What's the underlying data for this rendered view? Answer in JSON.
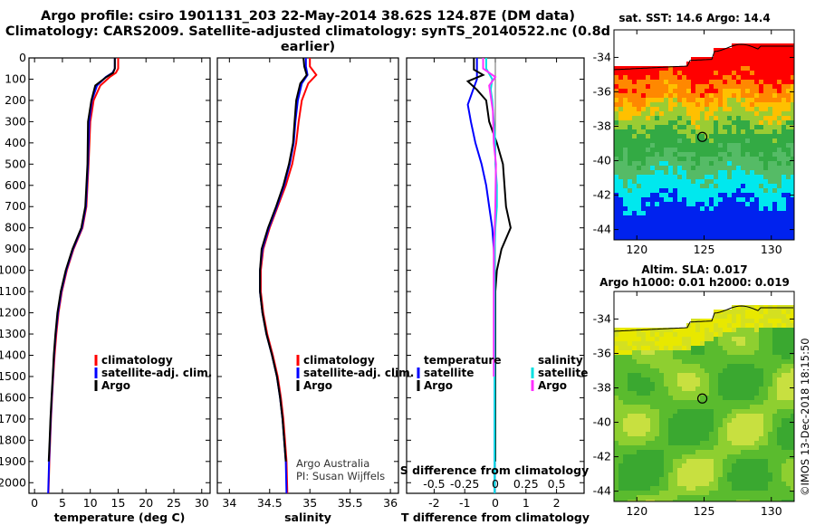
{
  "title": {
    "line1": "Argo profile: csiro 1901131_203 22-May-2014 38.62S 124.87E (DM data)",
    "line2": "Climatology: CARS2009. Satellite-adjusted climatology: synTS_20140522.nc (0.8d earlier)"
  },
  "colors": {
    "climatology": "#ff0000",
    "satellite": "#0000ff",
    "argo": "#000000",
    "salinity_satellite": "#00e0e0",
    "salinity_argo": "#ff30ff"
  },
  "credit": {
    "line1": "Argo Australia",
    "line2": "PI: Susan Wijffels"
  },
  "watermark": "©IMOS 13-Dec-2018 18:15:50",
  "chart_data": [
    {
      "type": "line",
      "panel": "temperature",
      "xlabel": "temperature (deg C)",
      "ylabel": "",
      "xlim": [
        -1,
        31.5
      ],
      "ylim": [
        2050,
        0
      ],
      "xticks": [
        0,
        5,
        10,
        15,
        20,
        25,
        30
      ],
      "yticks": [
        0,
        100,
        200,
        300,
        400,
        500,
        600,
        700,
        800,
        900,
        1000,
        1100,
        1200,
        1300,
        1400,
        1500,
        1600,
        1700,
        1800,
        1900,
        2000
      ],
      "legend": [
        "climatology",
        "satellite-adj. clim.",
        "Argo"
      ],
      "series": [
        {
          "name": "climatology",
          "color": "#ff0000",
          "x": [
            15.0,
            15.0,
            14.6,
            13.5,
            11.8,
            10.6,
            10.0,
            9.7,
            9.3,
            8.6,
            7.0,
            5.8,
            4.9,
            4.3,
            3.9,
            3.6,
            3.35,
            3.15,
            2.95,
            2.8,
            2.65,
            2.5
          ],
          "y": [
            0,
            50,
            70,
            90,
            130,
            200,
            300,
            500,
            700,
            800,
            900,
            1000,
            1100,
            1200,
            1300,
            1400,
            1500,
            1600,
            1700,
            1800,
            1900,
            2050
          ]
        },
        {
          "name": "satellite-adj. clim.",
          "color": "#0000ff",
          "x": [
            14.4,
            14.4,
            14.0,
            12.8,
            11.2,
            10.3,
            9.8,
            9.6,
            9.2,
            8.5,
            6.9,
            5.7,
            4.8,
            4.2,
            3.8,
            3.5,
            3.3,
            3.1,
            2.9,
            2.75,
            2.6,
            2.45
          ],
          "y": [
            0,
            50,
            70,
            90,
            130,
            200,
            300,
            500,
            700,
            800,
            900,
            1000,
            1100,
            1200,
            1300,
            1400,
            1500,
            1600,
            1700,
            1800,
            1900,
            2050
          ]
        },
        {
          "name": "Argo",
          "color": "#000000",
          "x": [
            14.4,
            14.4,
            14.1,
            12.9,
            10.9,
            10.2,
            9.6,
            9.5,
            9.1,
            8.4,
            6.8,
            5.6,
            4.7,
            4.1,
            3.75,
            3.45,
            3.25,
            3.05,
            2.85,
            2.7,
            2.55
          ],
          "y": [
            0,
            50,
            70,
            90,
            130,
            200,
            300,
            500,
            700,
            800,
            900,
            1000,
            1100,
            1200,
            1300,
            1400,
            1500,
            1600,
            1700,
            1800,
            1900
          ]
        }
      ]
    },
    {
      "type": "line",
      "panel": "salinity",
      "xlabel": "salinity",
      "ylabel": "",
      "xlim": [
        33.85,
        36.1
      ],
      "ylim": [
        2050,
        0
      ],
      "xticks": [
        34,
        34.5,
        35,
        35.5,
        36
      ],
      "xticklabels": [
        "34",
        "34.5",
        "35",
        "35.5",
        "36"
      ],
      "legend": [
        "climatology",
        "satellite-adj. clim.",
        "Argo"
      ],
      "series": [
        {
          "name": "climatology",
          "color": "#ff0000",
          "x": [
            35.0,
            35.0,
            35.08,
            34.98,
            34.9,
            34.86,
            34.83,
            34.78,
            34.7,
            34.6,
            34.5,
            34.42,
            34.39,
            34.39,
            34.42,
            34.47,
            34.54,
            34.6,
            34.64,
            34.67,
            34.69,
            34.71,
            34.72
          ],
          "y": [
            0,
            40,
            80,
            120,
            200,
            300,
            400,
            500,
            600,
            700,
            800,
            900,
            1000,
            1100,
            1200,
            1300,
            1400,
            1500,
            1600,
            1700,
            1800,
            1900,
            2050
          ]
        },
        {
          "name": "satellite-adj. clim.",
          "color": "#0000ff",
          "x": [
            34.95,
            34.95,
            34.97,
            34.9,
            34.85,
            34.82,
            34.8,
            34.75,
            34.68,
            34.59,
            34.49,
            34.41,
            34.38,
            34.38,
            34.41,
            34.46,
            34.53,
            34.59,
            34.63,
            34.66,
            34.68,
            34.7,
            34.71
          ],
          "y": [
            0,
            40,
            80,
            120,
            200,
            300,
            400,
            500,
            600,
            700,
            800,
            900,
            1000,
            1100,
            1200,
            1300,
            1400,
            1500,
            1600,
            1700,
            1800,
            1900,
            2050
          ]
        },
        {
          "name": "Argo",
          "color": "#000000",
          "x": [
            34.92,
            34.93,
            34.96,
            34.88,
            34.83,
            34.81,
            34.79,
            34.74,
            34.67,
            34.58,
            34.48,
            34.4,
            34.38,
            34.38,
            34.41,
            34.46,
            34.53,
            34.59,
            34.63,
            34.66,
            34.68,
            34.7
          ],
          "y": [
            0,
            40,
            80,
            120,
            200,
            300,
            400,
            500,
            600,
            700,
            800,
            900,
            1000,
            1100,
            1200,
            1300,
            1400,
            1500,
            1600,
            1700,
            1800,
            1900
          ]
        }
      ]
    },
    {
      "type": "line",
      "panel": "difference",
      "xlabel": "T difference from climatology",
      "xlabel2": "S difference from climatology",
      "xlim": [
        -2.9,
        2.9
      ],
      "ylim": [
        2050,
        0
      ],
      "xticks": [
        -2,
        -1,
        0,
        1,
        2
      ],
      "xticks2": [
        -0.5,
        -0.25,
        0,
        0.25,
        0.5
      ],
      "xticklabels2": [
        "-0.5",
        "-0.25",
        "0",
        "0.25",
        "0.5"
      ],
      "legend_left": {
        "heading": "temperature",
        "items": [
          "satellite",
          "Argo"
        ]
      },
      "legend_right": {
        "heading": "salinity",
        "items": [
          "satellite",
          "Argo"
        ]
      },
      "series": [
        {
          "name": "temperature satellite",
          "color": "#0000ff",
          "x": [
            -0.6,
            -0.6,
            -0.6,
            -0.7,
            -0.9,
            -0.8,
            -0.65,
            -0.45,
            -0.3,
            -0.2,
            -0.1,
            -0.05,
            -0.03,
            -0.02,
            -0.02,
            -0.02,
            -0.02,
            -0.02,
            -0.02,
            -0.02,
            -0.02,
            -0.02
          ],
          "y": [
            0,
            60,
            100,
            140,
            220,
            300,
            400,
            500,
            600,
            700,
            800,
            900,
            1000,
            1100,
            1200,
            1300,
            1400,
            1500,
            1600,
            1700,
            1800,
            2050
          ]
        },
        {
          "name": "temperature Argo",
          "color": "#000000",
          "x": [
            -0.7,
            -0.7,
            -0.4,
            -0.9,
            -0.6,
            -0.3,
            -0.2,
            0.05,
            0.25,
            0.35,
            0.5,
            0.2,
            0.05,
            0.0,
            0.0,
            0.0,
            0.0,
            0.0,
            0.0,
            0.0
          ],
          "y": [
            0,
            55,
            80,
            110,
            150,
            200,
            300,
            400,
            500,
            700,
            800,
            900,
            1000,
            1100,
            1200,
            1400,
            1500,
            1600,
            1700,
            1900
          ]
        },
        {
          "name": "salinity satellite",
          "color": "#00e0e0",
          "x": [
            -0.3,
            -0.3,
            -0.1,
            -0.15,
            -0.1,
            -0.05,
            0.0,
            0.0,
            0.05,
            0.05,
            0.0,
            -0.02,
            -0.02,
            -0.02,
            -0.02,
            -0.02,
            -0.02,
            -0.02,
            -0.02
          ],
          "y": [
            0,
            50,
            100,
            150,
            200,
            300,
            400,
            500,
            600,
            700,
            800,
            900,
            1000,
            1200,
            1400,
            1600,
            1800,
            1900,
            2050
          ]
        },
        {
          "name": "salinity Argo",
          "color": "#ff30ff",
          "x": [
            -0.4,
            -0.4,
            0.0,
            -0.2,
            -0.15,
            -0.08,
            -0.05,
            0.02,
            0.0,
            -0.02,
            -0.05,
            -0.05,
            -0.05,
            -0.05,
            -0.05,
            -0.05,
            -0.05
          ],
          "y": [
            0,
            50,
            90,
            130,
            180,
            250,
            400,
            500,
            700,
            800,
            900,
            1000,
            1100,
            1200,
            1300,
            1400,
            1500
          ]
        }
      ]
    },
    {
      "type": "heatmap",
      "panel": "sst_map",
      "title": "sat. SST: 14.6 Argo: 14.4",
      "xticks": [
        120,
        125,
        130
      ],
      "yticks": [
        -34,
        -36,
        -38,
        -40,
        -42,
        -44
      ],
      "xlim": [
        118.3,
        131.7
      ],
      "ylim": [
        -44.6,
        -32.4
      ],
      "marker": {
        "lon": 124.87,
        "lat": -38.62
      }
    },
    {
      "type": "heatmap",
      "panel": "sla_map",
      "title": "Altim. SLA: 0.017",
      "subtitle": "Argo h1000: 0.01 h2000: 0.019",
      "xticks": [
        120,
        125,
        130
      ],
      "yticks": [
        -34,
        -36,
        -38,
        -40,
        -42,
        -44
      ],
      "xlim": [
        118.3,
        131.7
      ],
      "ylim": [
        -44.6,
        -32.4
      ],
      "marker": {
        "lon": 124.87,
        "lat": -38.62
      }
    }
  ]
}
